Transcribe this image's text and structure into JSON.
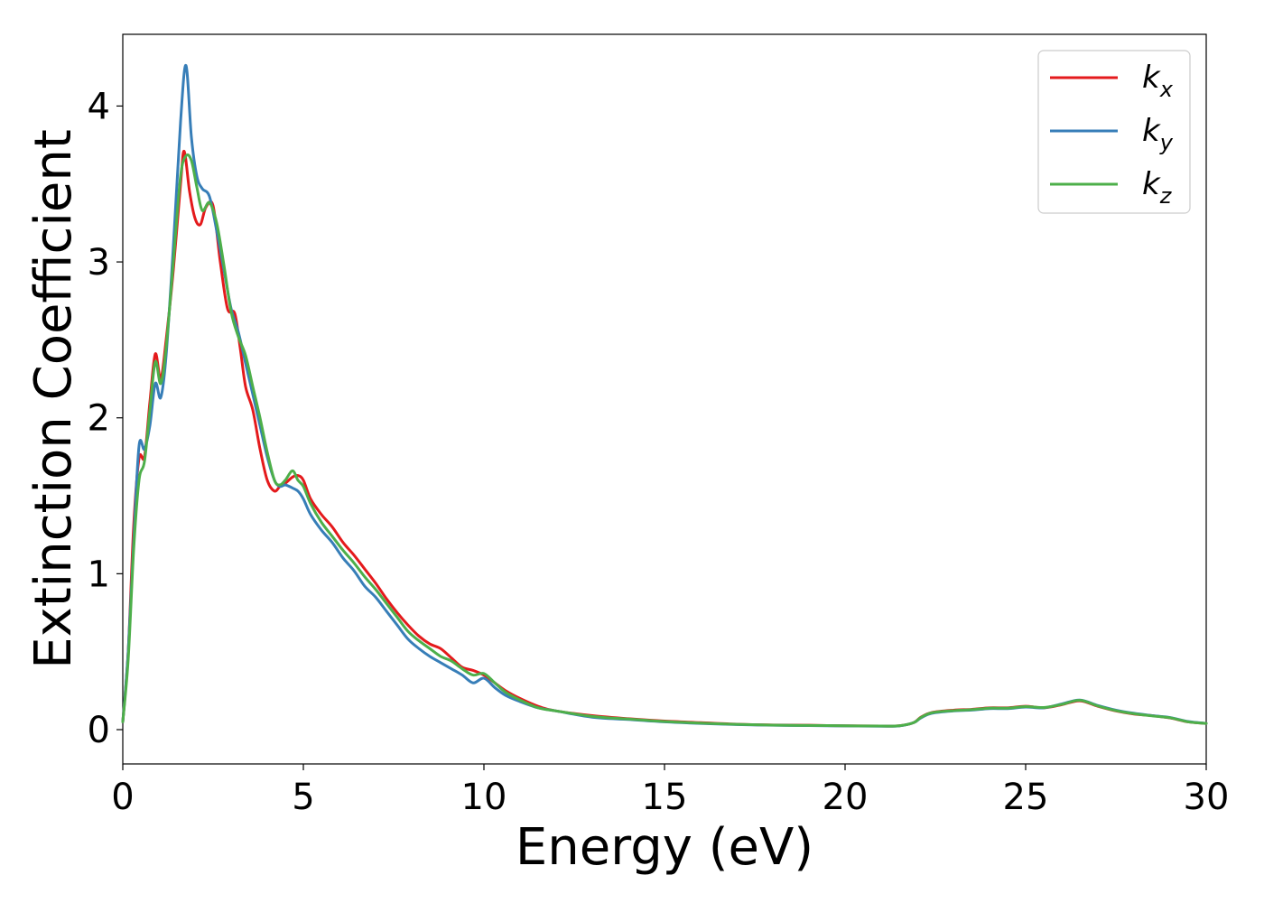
{
  "chart_data": {
    "type": "line",
    "title": "",
    "xlabel": "Energy (eV)",
    "ylabel": "Extinction Coefficient",
    "xlim": [
      0,
      30
    ],
    "ylim": [
      -0.22,
      4.46
    ],
    "xticks": [
      0,
      5,
      10,
      15,
      20,
      25,
      30
    ],
    "xtick_labels": [
      "0",
      "5",
      "10",
      "15",
      "20",
      "25",
      "30"
    ],
    "yticks": [
      0,
      1,
      2,
      3,
      4
    ],
    "ytick_labels": [
      "0",
      "1",
      "2",
      "3",
      "4"
    ],
    "grid": false,
    "legend_position": "top-right",
    "series": [
      {
        "name": "k_x",
        "label_main": "k",
        "label_sub": "x",
        "color": "#e41a1c",
        "x": [
          0,
          0.15,
          0.3,
          0.45,
          0.6,
          0.75,
          0.9,
          1.05,
          1.2,
          1.4,
          1.6,
          1.7,
          1.85,
          2.0,
          2.15,
          2.3,
          2.5,
          2.7,
          2.9,
          3.1,
          3.25,
          3.4,
          3.6,
          3.8,
          4.0,
          4.2,
          4.35,
          4.5,
          4.7,
          4.85,
          5.0,
          5.2,
          5.5,
          5.8,
          6.1,
          6.4,
          6.7,
          7.0,
          7.3,
          7.6,
          7.9,
          8.2,
          8.5,
          8.8,
          9.1,
          9.4,
          9.7,
          10.0,
          10.3,
          10.6,
          11.0,
          11.5,
          12.0,
          13.0,
          14.0,
          15.0,
          16.0,
          17.0,
          18.0,
          19.0,
          20.0,
          21.0,
          21.5,
          21.9,
          22.1,
          22.4,
          23.0,
          23.5,
          24.0,
          24.5,
          25.0,
          25.5,
          26.0,
          26.5,
          27.0,
          27.5,
          28.0,
          28.5,
          29.0,
          29.5,
          30.0
        ],
        "y": [
          0.05,
          0.5,
          1.3,
          1.74,
          1.75,
          2.1,
          2.41,
          2.25,
          2.5,
          2.95,
          3.5,
          3.71,
          3.45,
          3.28,
          3.24,
          3.35,
          3.36,
          3.0,
          2.7,
          2.67,
          2.45,
          2.2,
          2.05,
          1.8,
          1.6,
          1.53,
          1.56,
          1.58,
          1.62,
          1.63,
          1.6,
          1.48,
          1.38,
          1.3,
          1.2,
          1.12,
          1.03,
          0.94,
          0.84,
          0.75,
          0.67,
          0.6,
          0.55,
          0.52,
          0.46,
          0.4,
          0.38,
          0.35,
          0.3,
          0.25,
          0.2,
          0.15,
          0.12,
          0.09,
          0.07,
          0.055,
          0.045,
          0.035,
          0.03,
          0.028,
          0.025,
          0.023,
          0.025,
          0.045,
          0.08,
          0.11,
          0.125,
          0.13,
          0.14,
          0.14,
          0.15,
          0.14,
          0.16,
          0.185,
          0.15,
          0.12,
          0.1,
          0.09,
          0.075,
          0.05,
          0.04
        ]
      },
      {
        "name": "k_y",
        "label_main": "k",
        "label_sub": "y",
        "color": "#377eb8",
        "x": [
          0,
          0.15,
          0.3,
          0.45,
          0.6,
          0.75,
          0.9,
          1.05,
          1.2,
          1.4,
          1.6,
          1.75,
          1.9,
          2.05,
          2.2,
          2.4,
          2.6,
          2.8,
          3.0,
          3.2,
          3.4,
          3.6,
          3.8,
          4.0,
          4.2,
          4.35,
          4.5,
          4.7,
          4.85,
          5.0,
          5.2,
          5.5,
          5.8,
          6.1,
          6.4,
          6.7,
          7.0,
          7.3,
          7.6,
          7.9,
          8.2,
          8.5,
          8.8,
          9.1,
          9.4,
          9.7,
          10.0,
          10.3,
          10.6,
          11.0,
          11.5,
          12.0,
          13.0,
          14.0,
          15.0,
          16.0,
          17.0,
          18.0,
          19.0,
          20.0,
          21.0,
          21.5,
          21.9,
          22.1,
          22.4,
          23.0,
          23.5,
          24.0,
          24.5,
          25.0,
          25.5,
          26.0,
          26.5,
          27.0,
          27.5,
          28.0,
          28.5,
          29.0,
          29.5,
          30.0
        ],
        "y": [
          0.05,
          0.5,
          1.2,
          1.82,
          1.8,
          1.95,
          2.22,
          2.13,
          2.4,
          3.1,
          3.9,
          4.26,
          3.8,
          3.55,
          3.47,
          3.42,
          3.2,
          2.95,
          2.7,
          2.55,
          2.35,
          2.15,
          1.95,
          1.75,
          1.6,
          1.56,
          1.57,
          1.55,
          1.53,
          1.48,
          1.38,
          1.28,
          1.2,
          1.1,
          1.02,
          0.92,
          0.85,
          0.76,
          0.67,
          0.58,
          0.52,
          0.47,
          0.43,
          0.39,
          0.35,
          0.3,
          0.33,
          0.27,
          0.22,
          0.18,
          0.14,
          0.12,
          0.08,
          0.065,
          0.05,
          0.04,
          0.033,
          0.028,
          0.026,
          0.024,
          0.022,
          0.024,
          0.045,
          0.075,
          0.105,
          0.12,
          0.125,
          0.135,
          0.135,
          0.145,
          0.14,
          0.165,
          0.19,
          0.155,
          0.125,
          0.105,
          0.09,
          0.078,
          0.052,
          0.04
        ]
      },
      {
        "name": "k_z",
        "label_main": "k",
        "label_sub": "z",
        "color": "#4daf4a",
        "x": [
          0,
          0.15,
          0.3,
          0.45,
          0.6,
          0.75,
          0.9,
          1.05,
          1.2,
          1.4,
          1.6,
          1.75,
          1.9,
          2.05,
          2.2,
          2.4,
          2.6,
          2.8,
          3.0,
          3.2,
          3.4,
          3.6,
          3.8,
          4.0,
          4.2,
          4.35,
          4.5,
          4.7,
          4.85,
          5.0,
          5.2,
          5.5,
          5.8,
          6.1,
          6.4,
          6.7,
          7.0,
          7.3,
          7.6,
          7.9,
          8.2,
          8.5,
          8.8,
          9.1,
          9.4,
          9.7,
          10.0,
          10.3,
          10.6,
          11.0,
          11.5,
          12.0,
          13.0,
          14.0,
          15.0,
          16.0,
          17.0,
          18.0,
          19.0,
          20.0,
          21.0,
          21.5,
          21.9,
          22.1,
          22.4,
          23.0,
          23.5,
          24.0,
          24.5,
          25.0,
          25.5,
          26.0,
          26.5,
          27.0,
          27.5,
          28.0,
          28.5,
          29.0,
          29.5,
          30.0
        ],
        "y": [
          0.05,
          0.45,
          1.15,
          1.6,
          1.72,
          2.05,
          2.36,
          2.22,
          2.45,
          3.0,
          3.55,
          3.68,
          3.65,
          3.48,
          3.33,
          3.38,
          3.25,
          2.98,
          2.68,
          2.52,
          2.4,
          2.2,
          2.0,
          1.78,
          1.6,
          1.57,
          1.6,
          1.66,
          1.6,
          1.56,
          1.45,
          1.33,
          1.24,
          1.15,
          1.07,
          0.98,
          0.9,
          0.81,
          0.72,
          0.63,
          0.57,
          0.52,
          0.47,
          0.44,
          0.39,
          0.35,
          0.36,
          0.3,
          0.24,
          0.19,
          0.14,
          0.12,
          0.085,
          0.068,
          0.052,
          0.042,
          0.034,
          0.029,
          0.027,
          0.025,
          0.023,
          0.025,
          0.045,
          0.078,
          0.108,
          0.122,
          0.128,
          0.138,
          0.138,
          0.148,
          0.142,
          0.162,
          0.188,
          0.152,
          0.122,
          0.102,
          0.088,
          0.076,
          0.05,
          0.04
        ]
      }
    ]
  }
}
